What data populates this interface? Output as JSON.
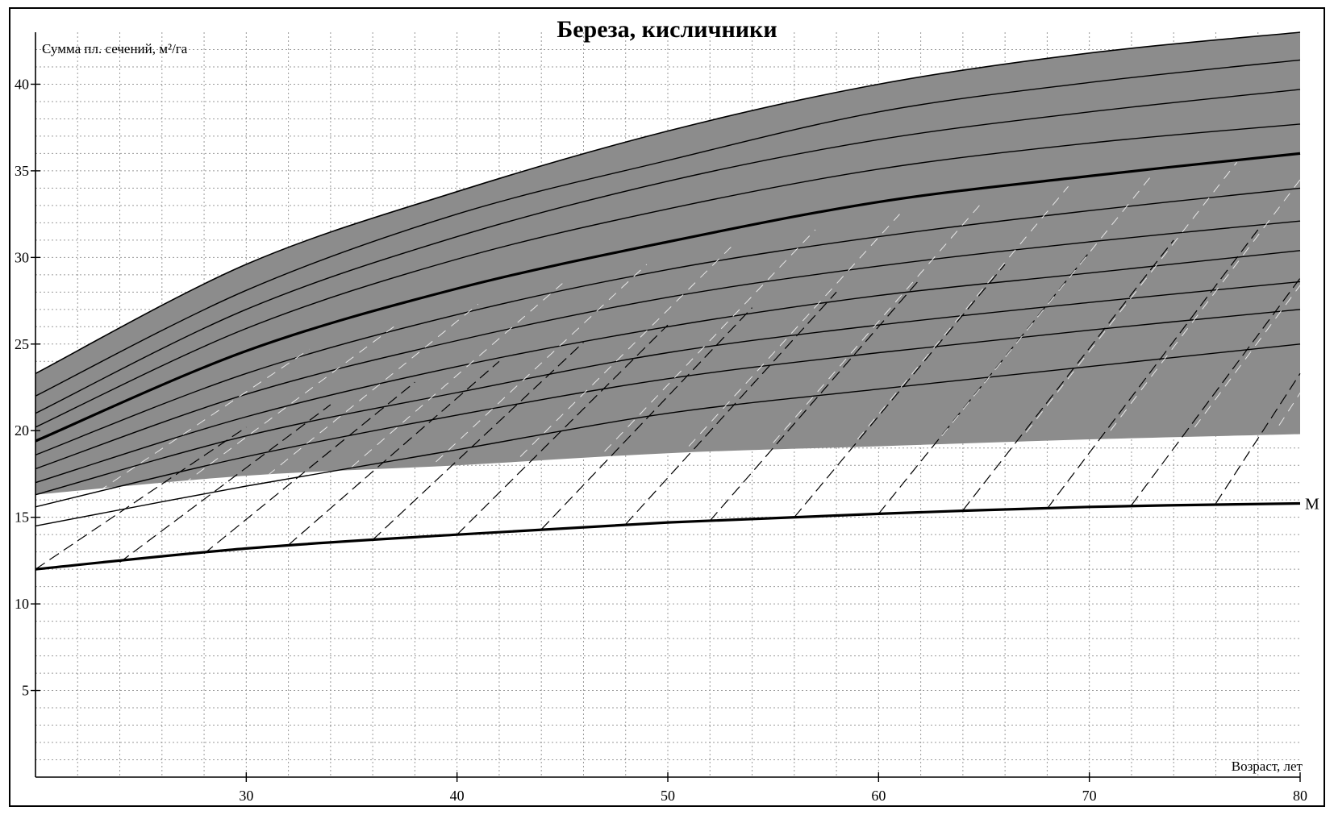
{
  "chart_data": {
    "type": "line",
    "title": "Береза, кисличники",
    "ylabel": "Сумма пл. сечений, м²/га",
    "xlabel": "Возраст, лет",
    "xlim": [
      20,
      80
    ],
    "ylim": [
      0,
      43
    ],
    "x_ticks": [
      30,
      40,
      50,
      60,
      70,
      80
    ],
    "y_ticks": [
      5,
      10,
      15,
      20,
      25,
      30,
      35,
      40
    ],
    "grid": true,
    "colors": {
      "band_fill": "#8c8c8c",
      "line": "#000000",
      "dashed_light": "#e8e8e8",
      "background": "#ffffff"
    },
    "band": {
      "x": [
        20,
        30,
        40,
        50,
        60,
        70,
        80
      ],
      "upper": [
        23.3,
        29.6,
        33.8,
        37.3,
        40.0,
        41.8,
        43.0
      ],
      "lower": [
        16.3,
        17.4,
        18.0,
        18.7,
        19.1,
        19.5,
        19.8
      ]
    },
    "series_x": [
      20,
      30,
      40,
      50,
      60,
      70,
      80
    ],
    "curves": [
      {
        "values": [
          22.0,
          28.1,
          32.5,
          35.6,
          38.4,
          40.1,
          41.4
        ]
      },
      {
        "values": [
          21.0,
          27.0,
          31.2,
          34.4,
          36.8,
          38.4,
          39.7
        ]
      },
      {
        "values": [
          20.2,
          25.9,
          29.9,
          32.8,
          35.1,
          36.6,
          37.7
        ]
      },
      {
        "values": [
          19.4,
          24.6,
          28.2,
          30.9,
          33.2,
          34.7,
          36.0
        ],
        "bold": true
      },
      {
        "values": [
          18.6,
          23.3,
          26.7,
          29.3,
          31.2,
          32.7,
          34.0
        ]
      },
      {
        "values": [
          17.8,
          22.1,
          25.2,
          27.7,
          29.5,
          30.9,
          32.1
        ]
      },
      {
        "values": [
          17.0,
          20.8,
          23.7,
          26.0,
          27.8,
          29.1,
          30.4
        ]
      },
      {
        "values": [
          16.3,
          19.7,
          22.2,
          24.5,
          26.1,
          27.4,
          28.6
        ]
      },
      {
        "values": [
          15.6,
          18.5,
          20.9,
          23.0,
          24.5,
          25.8,
          27.0
        ]
      },
      {
        "values": [
          14.5,
          16.8,
          18.9,
          21.0,
          22.4,
          23.7,
          25.0
        ]
      }
    ],
    "series": [
      {
        "name": "M",
        "x": [
          20,
          30,
          40,
          50,
          60,
          70,
          80
        ],
        "values": [
          12.0,
          13.2,
          14.0,
          14.7,
          15.2,
          15.6,
          15.8
        ],
        "bold": true
      }
    ],
    "diagonals": [
      {
        "x": [
          20.0,
          30.0
        ],
        "values": [
          12.0,
          20.2
        ]
      },
      {
        "x": [
          24.0,
          34.0
        ],
        "values": [
          12.4,
          21.5
        ]
      },
      {
        "x": [
          28.0,
          38.0
        ],
        "values": [
          12.9,
          22.8
        ]
      },
      {
        "x": [
          32.0,
          42.0
        ],
        "values": [
          13.4,
          24.0
        ]
      },
      {
        "x": [
          36.0,
          46.0
        ],
        "values": [
          13.7,
          25.1
        ]
      },
      {
        "x": [
          40.0,
          50.0
        ],
        "values": [
          14.0,
          26.1
        ]
      },
      {
        "x": [
          44.0,
          54.0
        ],
        "values": [
          14.3,
          27.1
        ]
      },
      {
        "x": [
          48.0,
          58.0
        ],
        "values": [
          14.6,
          28.0
        ]
      },
      {
        "x": [
          52.0,
          62.0
        ],
        "values": [
          14.8,
          28.8
        ]
      },
      {
        "x": [
          56.0,
          66.0
        ],
        "values": [
          15.0,
          29.6
        ]
      },
      {
        "x": [
          60.0,
          70.0
        ],
        "values": [
          15.2,
          30.3
        ]
      },
      {
        "x": [
          64.0,
          74.0
        ],
        "values": [
          15.4,
          31.0
        ]
      },
      {
        "x": [
          68.0,
          78.0
        ],
        "values": [
          15.5,
          31.6
        ]
      },
      {
        "x": [
          72.0,
          80.0
        ],
        "values": [
          15.7,
          28.8
        ]
      },
      {
        "x": [
          76.0,
          80.0
        ],
        "values": [
          15.8,
          23.3
        ]
      }
    ]
  }
}
